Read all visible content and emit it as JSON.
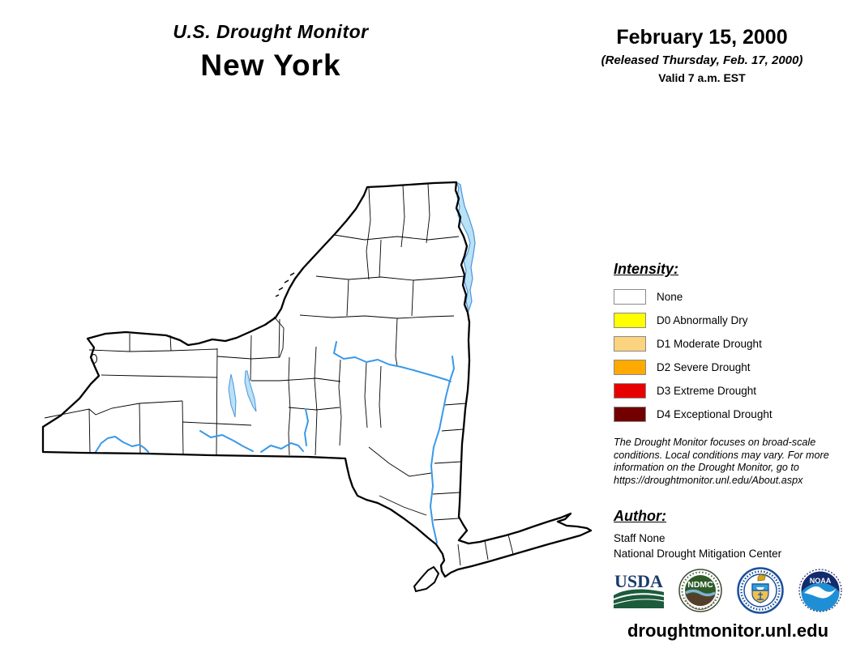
{
  "header": {
    "title": "U.S. Drought Monitor",
    "subtitle": "New York",
    "date": "February 15, 2000",
    "released": "(Released Thursday, Feb. 17, 2000)",
    "valid": "Valid 7 a.m. EST"
  },
  "legend": {
    "heading": "Intensity:",
    "items": [
      {
        "label": "None",
        "color": "#FFFFFF"
      },
      {
        "label": "D0 Abnormally Dry",
        "color": "#FFFF00"
      },
      {
        "label": "D1 Moderate Drought",
        "color": "#FCD37F"
      },
      {
        "label": "D2 Severe Drought",
        "color": "#FFAA00"
      },
      {
        "label": "D3 Extreme Drought",
        "color": "#E60000"
      },
      {
        "label": "D4 Exceptional Drought",
        "color": "#730000"
      }
    ]
  },
  "disclaimer_lines": [
    "The Drought Monitor focuses on broad-scale",
    "conditions. Local conditions may vary. For more",
    "information on the Drought Monitor, go to",
    "https://droughtmonitor.unl.edu/About.aspx"
  ],
  "author": {
    "heading": "Author:",
    "name": "Staff None",
    "organization": "National Drought Mitigation Center"
  },
  "logos": {
    "usda_label": "USDA",
    "ndmc_label": "NDMC",
    "noaa_label": "NOAA"
  },
  "footer": {
    "url": "droughtmonitor.unl.edu"
  },
  "map": {
    "state": "New York",
    "state_fill": "#FFFFFF",
    "boundary_color": "#000000",
    "river_color": "#3A99E8",
    "lake_fill": "#B9E2F5",
    "lake_stroke": "#4D94DB"
  }
}
